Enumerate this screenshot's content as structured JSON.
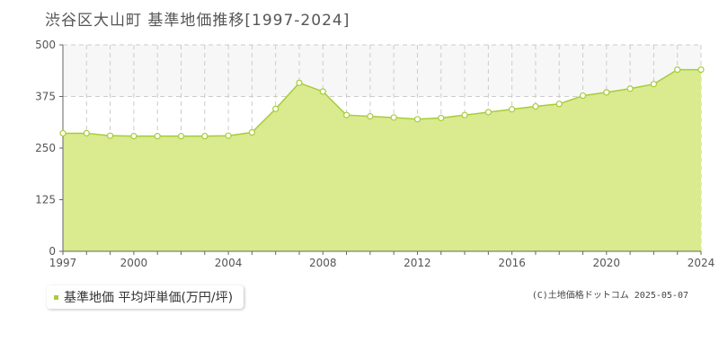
{
  "title": "渋谷区大山町 基準地価推移[1997-2024]",
  "legend_label": "基準地価 平均坪単価(万円/坪)",
  "credit": "(C)土地価格ドットコム 2025-05-07",
  "colors": {
    "area_fill": "#d9ea8f",
    "line": "#a8cc3a",
    "marker_fill": "#ffffff",
    "grid": "#cccccc",
    "axis": "#666666",
    "background_band": "#f7f7f7"
  },
  "chart_data": {
    "type": "area",
    "title": "渋谷区大山町 基準地価推移[1997-2024]",
    "xlabel": "",
    "ylabel": "",
    "x_ticks": [
      1997,
      2000,
      2004,
      2008,
      2012,
      2016,
      2020,
      2024
    ],
    "y_ticks": [
      0,
      125,
      250,
      375,
      500
    ],
    "xlim": [
      1997,
      2024
    ],
    "ylim": [
      0,
      500
    ],
    "grid": true,
    "legend": "bottom-left",
    "series": [
      {
        "name": "基準地価 平均坪単価(万円/坪)",
        "x": [
          1997,
          1998,
          1999,
          2000,
          2001,
          2002,
          2003,
          2004,
          2005,
          2006,
          2007,
          2008,
          2009,
          2010,
          2011,
          2012,
          2013,
          2014,
          2015,
          2016,
          2017,
          2018,
          2019,
          2020,
          2021,
          2022,
          2023,
          2024
        ],
        "values": [
          286,
          286,
          280,
          279,
          279,
          279,
          279,
          280,
          288,
          345,
          408,
          387,
          330,
          327,
          324,
          320,
          323,
          330,
          337,
          344,
          351,
          357,
          377,
          385,
          394,
          405,
          440,
          440
        ]
      }
    ]
  }
}
